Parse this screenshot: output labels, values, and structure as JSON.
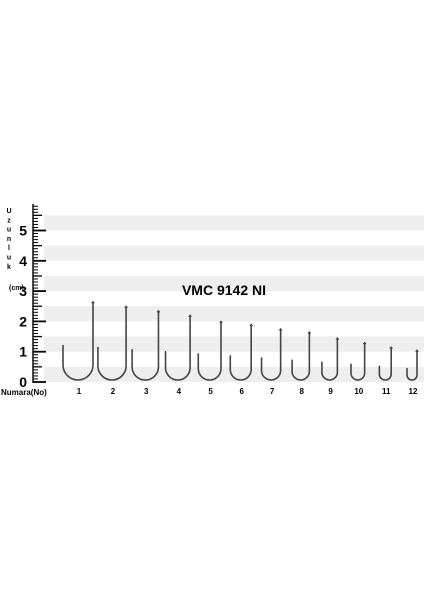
{
  "chart_data": {
    "type": "other",
    "title": "VMC 9142 NI",
    "ruler": {
      "unit_letters": [
        "U",
        "z",
        "u",
        "n",
        "l",
        "u",
        "k"
      ],
      "unit_label": "(cm)",
      "ticks": [
        "0",
        "1",
        "2",
        "3",
        "4",
        "5"
      ],
      "range": [
        0,
        6
      ]
    },
    "xlabel": "Numara(No)",
    "hooks": [
      {
        "number": "1",
        "length_cm": 2.65
      },
      {
        "number": "2",
        "length_cm": 2.5
      },
      {
        "number": "3",
        "length_cm": 2.35
      },
      {
        "number": "4",
        "length_cm": 2.2
      },
      {
        "number": "5",
        "length_cm": 2.0
      },
      {
        "number": "6",
        "length_cm": 1.9
      },
      {
        "number": "7",
        "length_cm": 1.75
      },
      {
        "number": "8",
        "length_cm": 1.65
      },
      {
        "number": "9",
        "length_cm": 1.45
      },
      {
        "number": "10",
        "length_cm": 1.3
      },
      {
        "number": "11",
        "length_cm": 1.15
      },
      {
        "number": "12",
        "length_cm": 1.05
      }
    ],
    "colors": {
      "stripe": "#eeeeee",
      "hook": "#444444",
      "text": "#000000"
    }
  }
}
